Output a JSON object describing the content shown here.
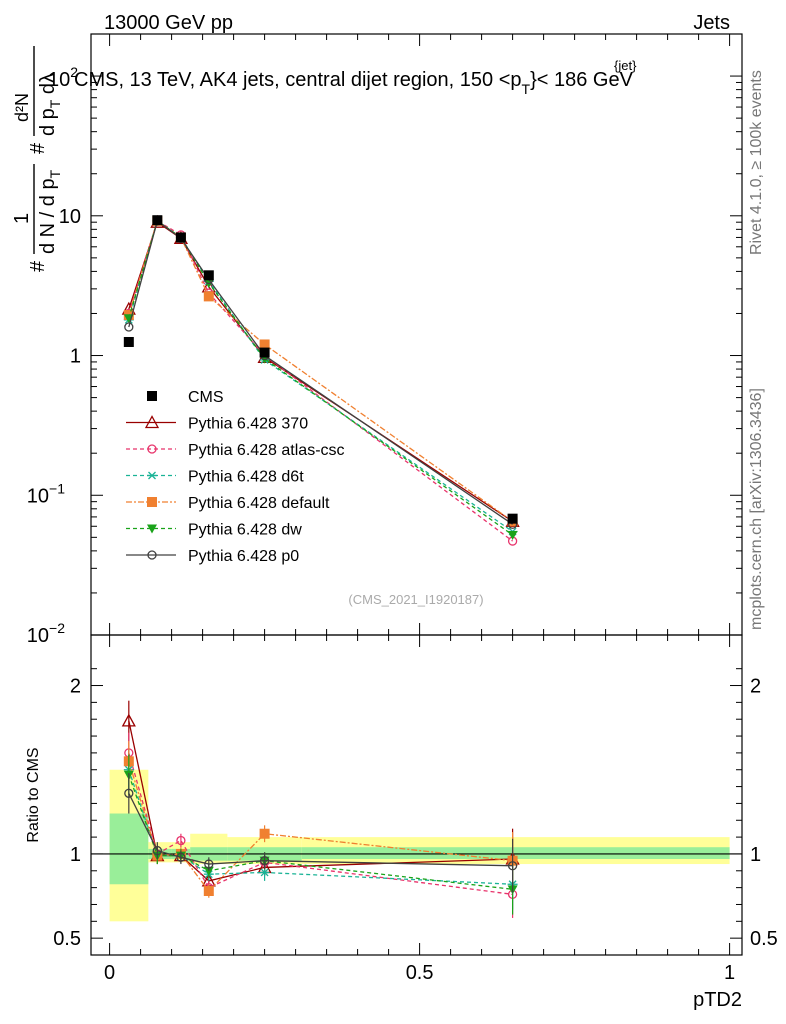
{
  "header": {
    "left": "13000 GeV pp",
    "right": "Jets",
    "plot_title": "CMS, 13 TeV, AK4 jets, central dijet region, 150 <",
    "plot_title_pt": "p",
    "plot_title_sub": "T",
    "plot_title_sup": "{jet}",
    "plot_title_end": "}< 186 GeV",
    "power_label": "10",
    "power_exp": "2"
  },
  "side": {
    "rivet": "Rivet 4.1.0, ≥ 100k events",
    "mcplots": "mcplots.cern.ch [arXiv:1306.3436]"
  },
  "watermark": "(CMS_2021_I1920187)",
  "upper_ylabel": {
    "num1": "1",
    "den1": "d N / d p",
    "den1_sub": "T",
    "num2": "d²N",
    "den2": "d p",
    "den2_sub": "T",
    "den2_end": " dλ",
    "hash": "#"
  },
  "ratio_ylabel": "Ratio to CMS",
  "xlabel": "pTD2",
  "upper_ticks": [
    {
      "v": 10,
      "label": "10"
    },
    {
      "v": 1,
      "label": "1"
    },
    {
      "v": 0.1,
      "label": "10",
      "exp": "−1"
    },
    {
      "v": 0.01,
      "label": "10",
      "exp": "−2"
    }
  ],
  "ratio_ticks": [
    {
      "v": 2,
      "label": "2"
    },
    {
      "v": 1,
      "label": "1"
    },
    {
      "v": 0.5,
      "label": "0.5"
    }
  ],
  "x_ticks": [
    {
      "v": 0,
      "label": "0"
    },
    {
      "v": 0.5,
      "label": "0.5"
    },
    {
      "v": 1,
      "label": "1"
    }
  ],
  "chart_data": {
    "type": "line",
    "title": "CMS, 13 TeV, AK4 jets, central dijet region, 150 < p_T^{jet} < 186 GeV",
    "xlabel": "pTD2",
    "ylabel": "1/dN/dp_T · d²N/dp_T dλ",
    "xlim": [
      0,
      1
    ],
    "ylim": [
      0.01,
      200
    ],
    "ratio_ylim": [
      0.4,
      2.3
    ],
    "yscale": "log",
    "bins": [
      [
        0.0,
        0.0625
      ],
      [
        0.0625,
        0.1
      ],
      [
        0.1,
        0.13
      ],
      [
        0.13,
        0.19
      ],
      [
        0.19,
        0.31
      ],
      [
        0.31,
        1.0
      ]
    ],
    "x": [
      0.031,
      0.077,
      0.115,
      0.16,
      0.25,
      0.65
    ],
    "data": {
      "name": "CMS",
      "values": [
        1.25,
        9.3,
        7.0,
        3.75,
        1.05,
        0.068
      ],
      "ratio_band_stat": [
        [
          0.82,
          1.24
        ],
        [
          0.97,
          1.03
        ],
        [
          0.97,
          1.03
        ],
        [
          0.96,
          1.04
        ],
        [
          0.96,
          1.04
        ],
        [
          0.97,
          1.04
        ]
      ],
      "ratio_band_tot": [
        [
          0.6,
          1.5
        ],
        [
          0.95,
          1.07
        ],
        [
          0.95,
          1.07
        ],
        [
          0.94,
          1.12
        ],
        [
          0.94,
          1.1
        ],
        [
          0.94,
          1.1
        ]
      ]
    },
    "series": [
      {
        "name": "Pythia 6.428 370",
        "color": "#990000",
        "dash": "",
        "marker": "triangle-open",
        "values": [
          2.15,
          9.0,
          6.9,
          3.1,
          0.97,
          0.065
        ],
        "ratio": [
          1.79,
          0.99,
          0.99,
          0.84,
          0.92,
          0.97
        ],
        "ratio_err": [
          0.12,
          0.05,
          0.04,
          0.04,
          0.05,
          0.18
        ]
      },
      {
        "name": "Pythia 6.428 atlas-csc",
        "color": "#e8336b",
        "dash": "4,3",
        "marker": "circle-open",
        "values": [
          2.0,
          9.2,
          7.3,
          2.8,
          1.0,
          0.047
        ],
        "ratio": [
          1.6,
          1.0,
          1.08,
          0.8,
          0.95,
          0.76
        ],
        "ratio_err": [
          0.12,
          0.05,
          0.04,
          0.04,
          0.05,
          0.14
        ]
      },
      {
        "name": "Pythia 6.428 d6t",
        "color": "#1ab396",
        "dash": "4,3",
        "marker": "asterisk",
        "values": [
          1.8,
          9.2,
          7.0,
          3.4,
          0.93,
          0.055
        ],
        "ratio": [
          1.5,
          0.99,
          0.99,
          0.88,
          0.89,
          0.82
        ],
        "ratio_err": [
          0.12,
          0.05,
          0.04,
          0.04,
          0.05,
          0.15
        ]
      },
      {
        "name": "Pythia 6.428 default",
        "color": "#f08030",
        "dash": "6,2,2,2",
        "marker": "square",
        "values": [
          1.95,
          9.2,
          7.0,
          2.65,
          1.2,
          0.065
        ],
        "ratio": [
          1.55,
          0.99,
          1.0,
          0.78,
          1.12,
          0.96
        ],
        "ratio_err": [
          0.12,
          0.05,
          0.04,
          0.04,
          0.05,
          0.17
        ]
      },
      {
        "name": "Pythia 6.428 dw",
        "color": "#1aa31a",
        "dash": "4,3",
        "marker": "triangle-down",
        "values": [
          1.85,
          9.2,
          7.0,
          3.3,
          0.95,
          0.052
        ],
        "ratio": [
          1.47,
          0.99,
          0.99,
          0.9,
          0.96,
          0.79
        ],
        "ratio_err": [
          0.12,
          0.05,
          0.04,
          0.04,
          0.05,
          0.15
        ]
      },
      {
        "name": "Pythia 6.428 p0",
        "color": "#404040",
        "dash": "",
        "marker": "circle-open",
        "values": [
          1.6,
          9.2,
          6.9,
          3.5,
          1.0,
          0.062
        ],
        "ratio": [
          1.36,
          1.02,
          0.98,
          0.94,
          0.96,
          0.93
        ],
        "ratio_err": [
          0.12,
          0.05,
          0.04,
          0.04,
          0.05,
          0.16
        ]
      }
    ]
  }
}
